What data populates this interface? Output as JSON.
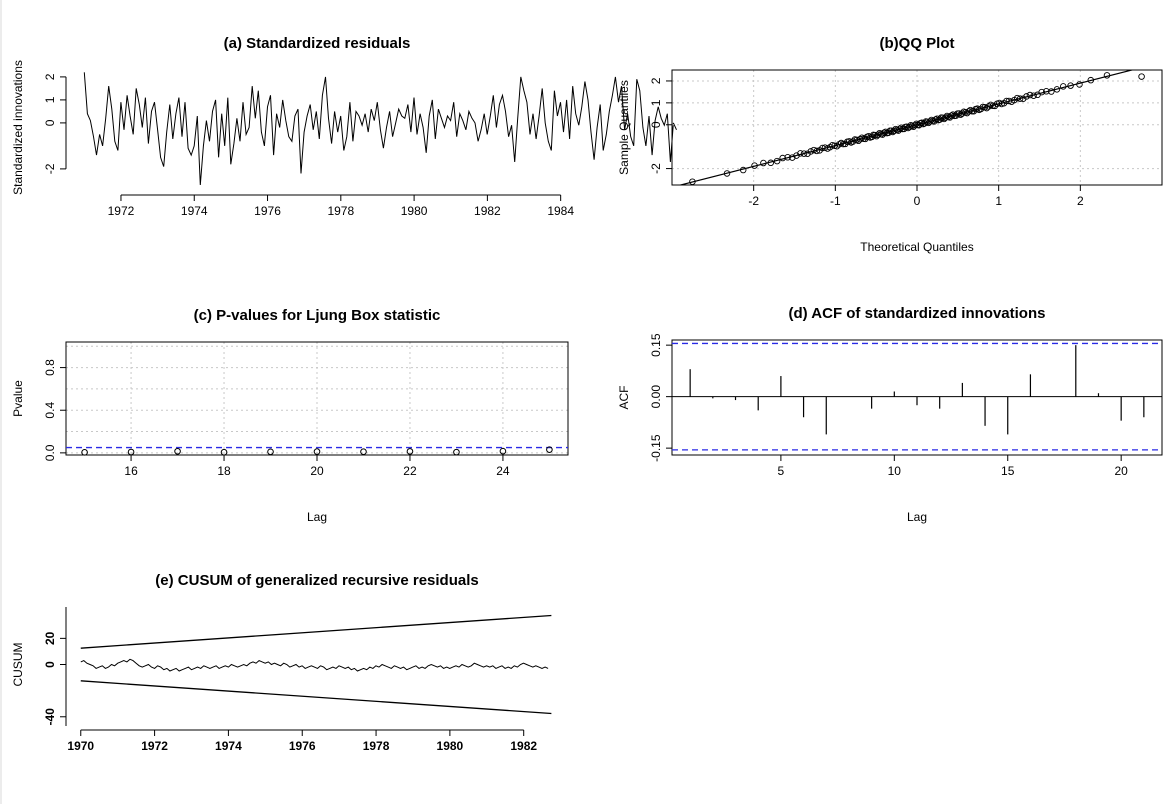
{
  "chart_data": [
    {
      "id": "a",
      "type": "line",
      "title": "(a) Standardized residuals",
      "xlabel": "",
      "ylabel": "Standardized innovations",
      "xlim": [
        1970.5,
        1984.2
      ],
      "ylim": [
        -2.7,
        2.3
      ],
      "xticks": [
        1972,
        1974,
        1976,
        1978,
        1980,
        1982,
        1984
      ],
      "yticks": [
        -2,
        0,
        1,
        2
      ],
      "grid": false,
      "x_start": 1971.0,
      "x_step": 0.0833,
      "series": [
        {
          "values": [
            2.2,
            0.4,
            0.1,
            -0.6,
            -1.4,
            -0.5,
            -1.0,
            0.2,
            1.6,
            0.6,
            -0.8,
            -1.2,
            0.9,
            -0.3,
            1.2,
            0.3,
            -0.5,
            1.5,
            0.8,
            -0.2,
            1.1,
            -0.9,
            0.5,
            0.9,
            -0.3,
            -1.5,
            -1.9,
            -0.4,
            0.8,
            -0.7,
            0.4,
            1.1,
            -0.6,
            0.9,
            -1.1,
            -1.4,
            -1.0,
            0.3,
            -2.7,
            -1.0,
            0.1,
            -0.8,
            0.5,
            1.0,
            -1.5,
            0.4,
            -1.0,
            1.1,
            -1.8,
            -0.9,
            0.2,
            -0.8,
            0.9,
            -0.5,
            -0.2,
            1.6,
            0.2,
            1.4,
            -0.4,
            -1.0,
            0.7,
            1.2,
            -1.4,
            0.4,
            -0.2,
            1.0,
            0.1,
            -0.6,
            -0.8,
            0.3,
            0.6,
            -2.2,
            -0.4,
            0.3,
            0.8,
            -0.3,
            0.5,
            -0.7,
            1.2,
            2.0,
            0.2,
            -0.9,
            0.5,
            -0.4,
            0.3,
            -1.2,
            -0.6,
            0.9,
            -0.8,
            0.5,
            0.3,
            -0.1,
            0.4,
            -0.4,
            0.6,
            0.1,
            0.9,
            -0.3,
            -1.1,
            -0.2,
            0.5,
            -0.6,
            0.0,
            0.6,
            0.3,
            0.2,
            0.8,
            -0.4,
            1.1,
            -0.5,
            0.4,
            -0.2,
            -1.3,
            0.3,
            1.0,
            -0.7,
            0.6,
            0.2,
            -0.2,
            0.3,
            0.1,
            0.9,
            -0.6,
            0.4,
            0.1,
            -0.3,
            0.5,
            0.2,
            0.0,
            -0.8,
            -0.3,
            0.4,
            -0.5,
            0.3,
            1.2,
            -0.2,
            0.8,
            1.2,
            0.5,
            -0.6,
            -0.1,
            -1.7,
            0.2,
            2.0,
            1.4,
            0.9,
            -0.5,
            0.4,
            -0.7,
            0.3,
            1.5,
            0.0,
            -0.8,
            -1.2,
            1.4,
            0.3,
            0.9,
            -0.4,
            1.0,
            -0.7,
            1.6,
            0.4,
            -0.1,
            0.7,
            1.8,
            1.0,
            -0.4,
            -1.6,
            -0.2,
            0.8,
            -1.2,
            -0.5,
            0.5,
            1.2,
            2.0,
            0.9,
            1.6,
            -0.3,
            0.4,
            -0.6,
            -1.0,
            1.9,
            1.4,
            -0.2,
            -1.0,
            0.3,
            -1.4,
            0.1,
            0.7,
            0.2,
            -0.1,
            0.4,
            -1.7,
            0.0,
            -0.3
          ]
        }
      ]
    },
    {
      "id": "b",
      "type": "scatter",
      "title": "(b)QQ Plot",
      "xlabel": "Theoretical Quantiles",
      "ylabel": "Sample Quantiles",
      "xlim": [
        -3.0,
        3.0
      ],
      "ylim": [
        -2.75,
        2.5
      ],
      "xticks": [
        -2,
        -1,
        0,
        1,
        2
      ],
      "yticks": [
        -2,
        0,
        1,
        2
      ],
      "grid": true,
      "reference_line": {
        "intercept": 0.0,
        "slope": 0.95
      },
      "n_points": 150,
      "extra_points": [
        [
          -2.75,
          -2.6
        ],
        [
          2.75,
          2.2
        ]
      ]
    },
    {
      "id": "c",
      "type": "scatter",
      "title": "(c) P-values for Ljung Box statistic",
      "xlabel": "Lag",
      "ylabel": "Pvalue",
      "xlim": [
        14.6,
        25.4
      ],
      "ylim": [
        -0.02,
        1.04
      ],
      "xticks": [
        16,
        18,
        20,
        22,
        24
      ],
      "yticks": [
        0.0,
        0.4,
        0.8
      ],
      "grid": true,
      "hline": 0.05,
      "x": [
        15,
        16,
        17,
        18,
        19,
        20,
        21,
        22,
        23,
        24,
        25
      ],
      "y": [
        0.005,
        0.008,
        0.015,
        0.006,
        0.01,
        0.012,
        0.011,
        0.014,
        0.007,
        0.016,
        0.03
      ]
    },
    {
      "id": "d",
      "type": "bar",
      "title": "(d) ACF of standardized innovations",
      "xlabel": "Lag",
      "ylabel": "ACF",
      "xlim": [
        0.2,
        21.8
      ],
      "ylim": [
        -0.17,
        0.165
      ],
      "xticks": [
        5,
        10,
        15,
        20
      ],
      "yticks": [
        -0.15,
        0.0,
        0.15
      ],
      "grid": false,
      "conf_bound": 0.155,
      "x": [
        1,
        2,
        3,
        4,
        5,
        6,
        7,
        8,
        9,
        10,
        11,
        12,
        13,
        14,
        15,
        16,
        17,
        18,
        19,
        20,
        21
      ],
      "values": [
        0.08,
        -0.005,
        -0.01,
        -0.04,
        0.06,
        -0.06,
        -0.11,
        0.0,
        -0.035,
        0.015,
        -0.025,
        -0.035,
        0.04,
        -0.085,
        -0.11,
        0.065,
        0.0,
        0.15,
        0.01,
        -0.07,
        -0.06
      ]
    },
    {
      "id": "e",
      "type": "line",
      "title": "(e) CUSUM of generalized recursive residuals",
      "xlabel": "",
      "ylabel": "CUSUM",
      "xlim": [
        1969.6,
        1983.2
      ],
      "ylim": [
        -44,
        44
      ],
      "xticks": [
        1970,
        1972,
        1974,
        1976,
        1978,
        1980,
        1982
      ],
      "yticks": [
        -40,
        0,
        20
      ],
      "grid": false,
      "upper_bound": [
        [
          1970,
          12.5
        ],
        [
          1982.75,
          37.5
        ]
      ],
      "lower_bound": [
        [
          1970,
          -12.5
        ],
        [
          1982.75,
          -37.5
        ]
      ],
      "x_start": 1970.0,
      "x_step": 0.0833,
      "series": [
        {
          "values": [
            2,
            3,
            1,
            0,
            -1,
            -3,
            -2,
            -1,
            -3,
            -2,
            0,
            -1,
            1,
            2,
            3,
            2,
            4,
            3,
            1,
            -1,
            -2,
            -1,
            0,
            -2,
            -3,
            -1,
            -2,
            -4,
            -3,
            -5,
            -4,
            -3,
            -5,
            -4,
            -3,
            -2,
            -4,
            -3,
            -2,
            -3,
            -1,
            -2,
            -3,
            -2,
            -1,
            -3,
            -2,
            -1,
            -2,
            0,
            -1,
            -2,
            -1,
            0,
            -1,
            1,
            2,
            1,
            3,
            2,
            1,
            2,
            0,
            1,
            0,
            -1,
            1,
            0,
            -2,
            -1,
            0,
            -2,
            -1,
            -3,
            -2,
            -1,
            -2,
            -3,
            -1,
            -2,
            -4,
            -3,
            -2,
            -3,
            -1,
            -2,
            -3,
            -2,
            -4,
            -3,
            -5,
            -4,
            -3,
            -4,
            -2,
            -3,
            -1,
            -2,
            0,
            -1,
            -2,
            -3,
            -1,
            -2,
            -3,
            -2,
            -4,
            -3,
            -2,
            -1,
            -3,
            -2,
            -3,
            -1,
            0,
            -1,
            -2,
            -1,
            -3,
            -2,
            -3,
            -2,
            -1,
            -2,
            0,
            -1,
            -2,
            -1,
            1,
            0,
            -1,
            -2,
            -1,
            -2,
            -1,
            -3,
            -2,
            -1,
            -3,
            -2,
            -3,
            -1,
            -2,
            0,
            1,
            0,
            -1,
            -2,
            -1,
            -2,
            -3,
            -2,
            -3
          ]
        }
      ]
    }
  ]
}
